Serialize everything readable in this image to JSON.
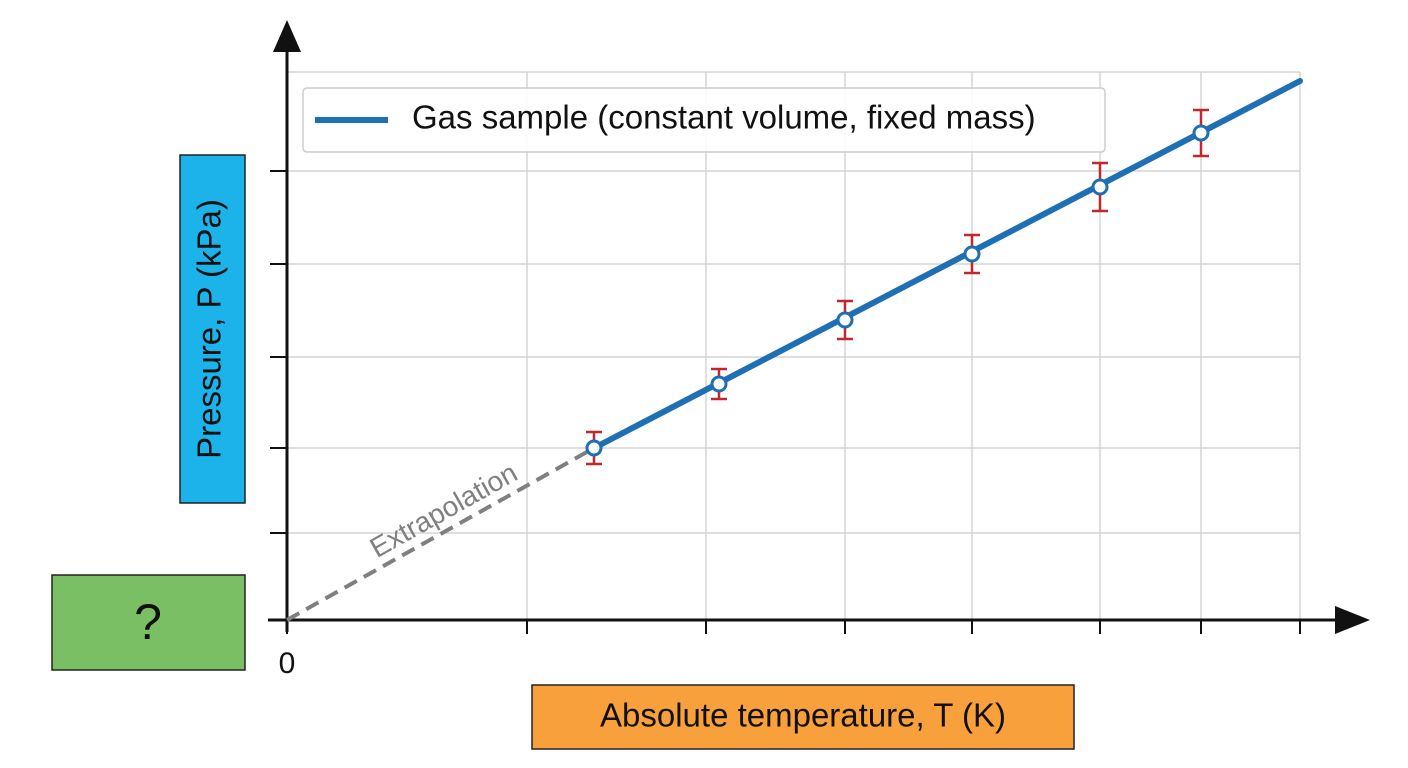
{
  "chart_data": {
    "type": "line",
    "xlabel": "Absolute temperature, T (K)",
    "ylabel": "Pressure, P (kPa)",
    "unknown_label": "?",
    "xlim": [
      0,
      1013
    ],
    "ylim": [
      0,
      548
    ],
    "xticks": [
      {
        "value": 0,
        "label": "0"
      },
      {
        "value": 240,
        "label": null
      },
      {
        "value": 419,
        "label": null
      },
      {
        "value": 558,
        "label": null
      },
      {
        "value": 685,
        "label": null
      },
      {
        "value": 813,
        "label": null
      },
      {
        "value": 914,
        "label": null
      },
      {
        "value": 1013,
        "label": null
      }
    ],
    "yticks": [
      {
        "value": 87,
        "label": null
      },
      {
        "value": 172,
        "label": null
      },
      {
        "value": 263,
        "label": null
      },
      {
        "value": 356,
        "label": null
      },
      {
        "value": 449,
        "label": null
      }
    ],
    "grid": true,
    "legend": "upper left",
    "series": [
      {
        "name": "Gas sample (constant volume, fixed mass)",
        "color": "#1f6fb4",
        "x": [
          307,
          1013
        ],
        "values": [
          172,
          539
        ]
      }
    ],
    "points": {
      "x": [
        307,
        432,
        558,
        685,
        813,
        914
      ],
      "values": [
        172,
        236,
        300,
        366,
        433,
        487
      ],
      "errors": [
        16,
        15,
        19,
        19,
        24,
        23
      ],
      "color": "#c0282d"
    },
    "extrapolation": {
      "label": "Extrapolation",
      "color": "#808080",
      "x": [
        0,
        307
      ],
      "values": [
        0,
        172
      ]
    }
  }
}
